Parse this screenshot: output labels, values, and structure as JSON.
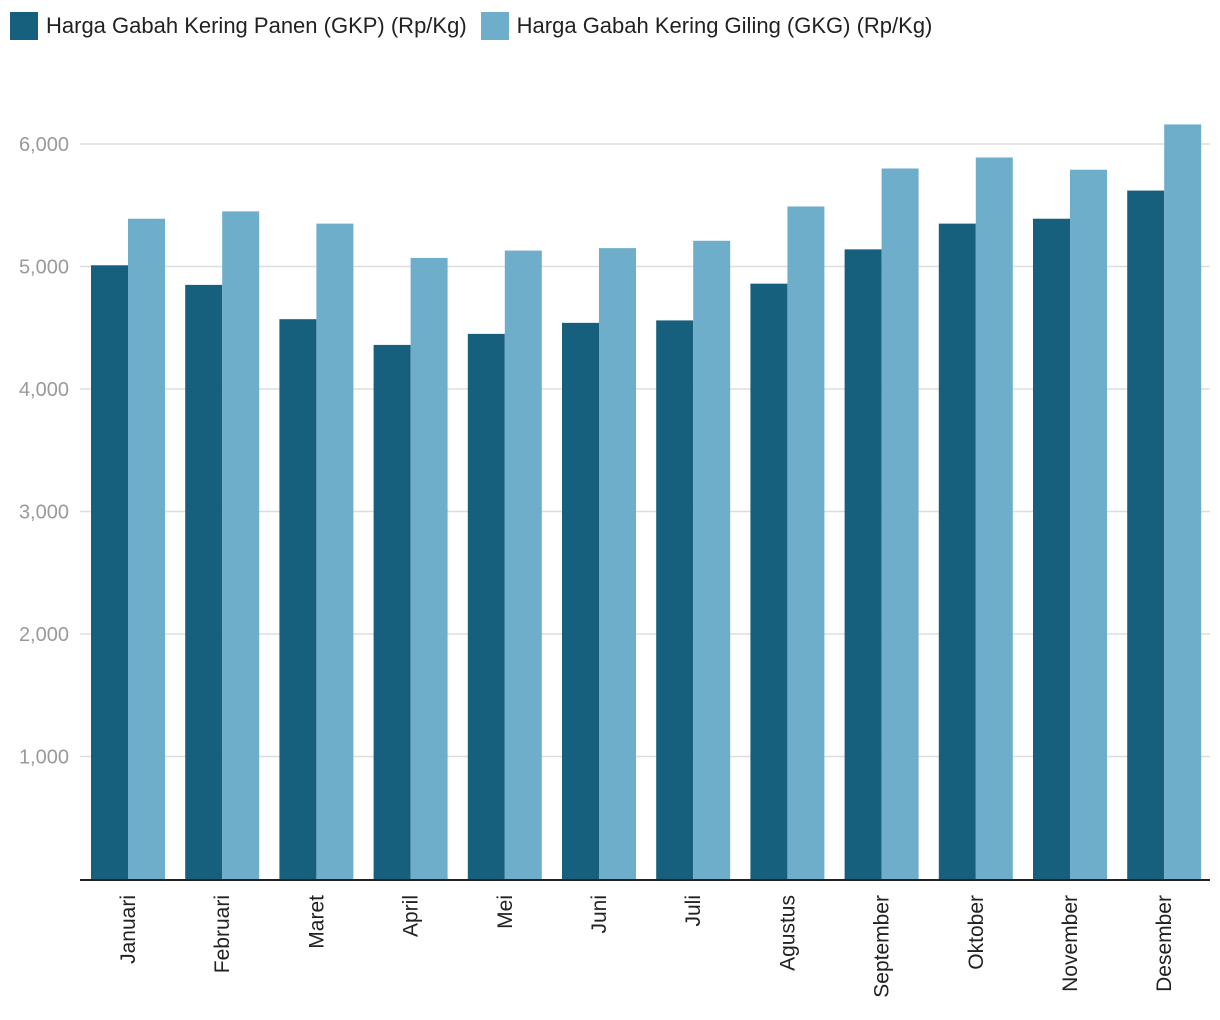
{
  "chart_data": {
    "type": "bar",
    "categories": [
      "Januari",
      "Februari",
      "Maret",
      "April",
      "Mei",
      "Juni",
      "Juli",
      "Agustus",
      "September",
      "Oktober",
      "November",
      "Desember"
    ],
    "series": [
      {
        "name": "Harga Gabah Kering Panen (GKP) (Rp/Kg)",
        "color": "#17607d",
        "values": [
          5010,
          4850,
          4570,
          4360,
          4450,
          4540,
          4560,
          4860,
          5140,
          5350,
          5390,
          5620
        ]
      },
      {
        "name": "Harga Gabah Kering Giling (GKG) (Rp/Kg)",
        "color": "#6eaecb",
        "values": [
          5390,
          5450,
          5350,
          5070,
          5130,
          5150,
          5210,
          5490,
          5800,
          5890,
          5790,
          6160
        ]
      }
    ],
    "ylim": [
      0,
      6000
    ],
    "yticks": [
      1000,
      2000,
      3000,
      4000,
      5000,
      6000
    ],
    "ytick_labels": [
      "1,000",
      "2,000",
      "3,000",
      "4,000",
      "5,000",
      "6,000"
    ],
    "grid": true,
    "legend_position": "top-left",
    "title": "",
    "xlabel": "",
    "ylabel": ""
  }
}
